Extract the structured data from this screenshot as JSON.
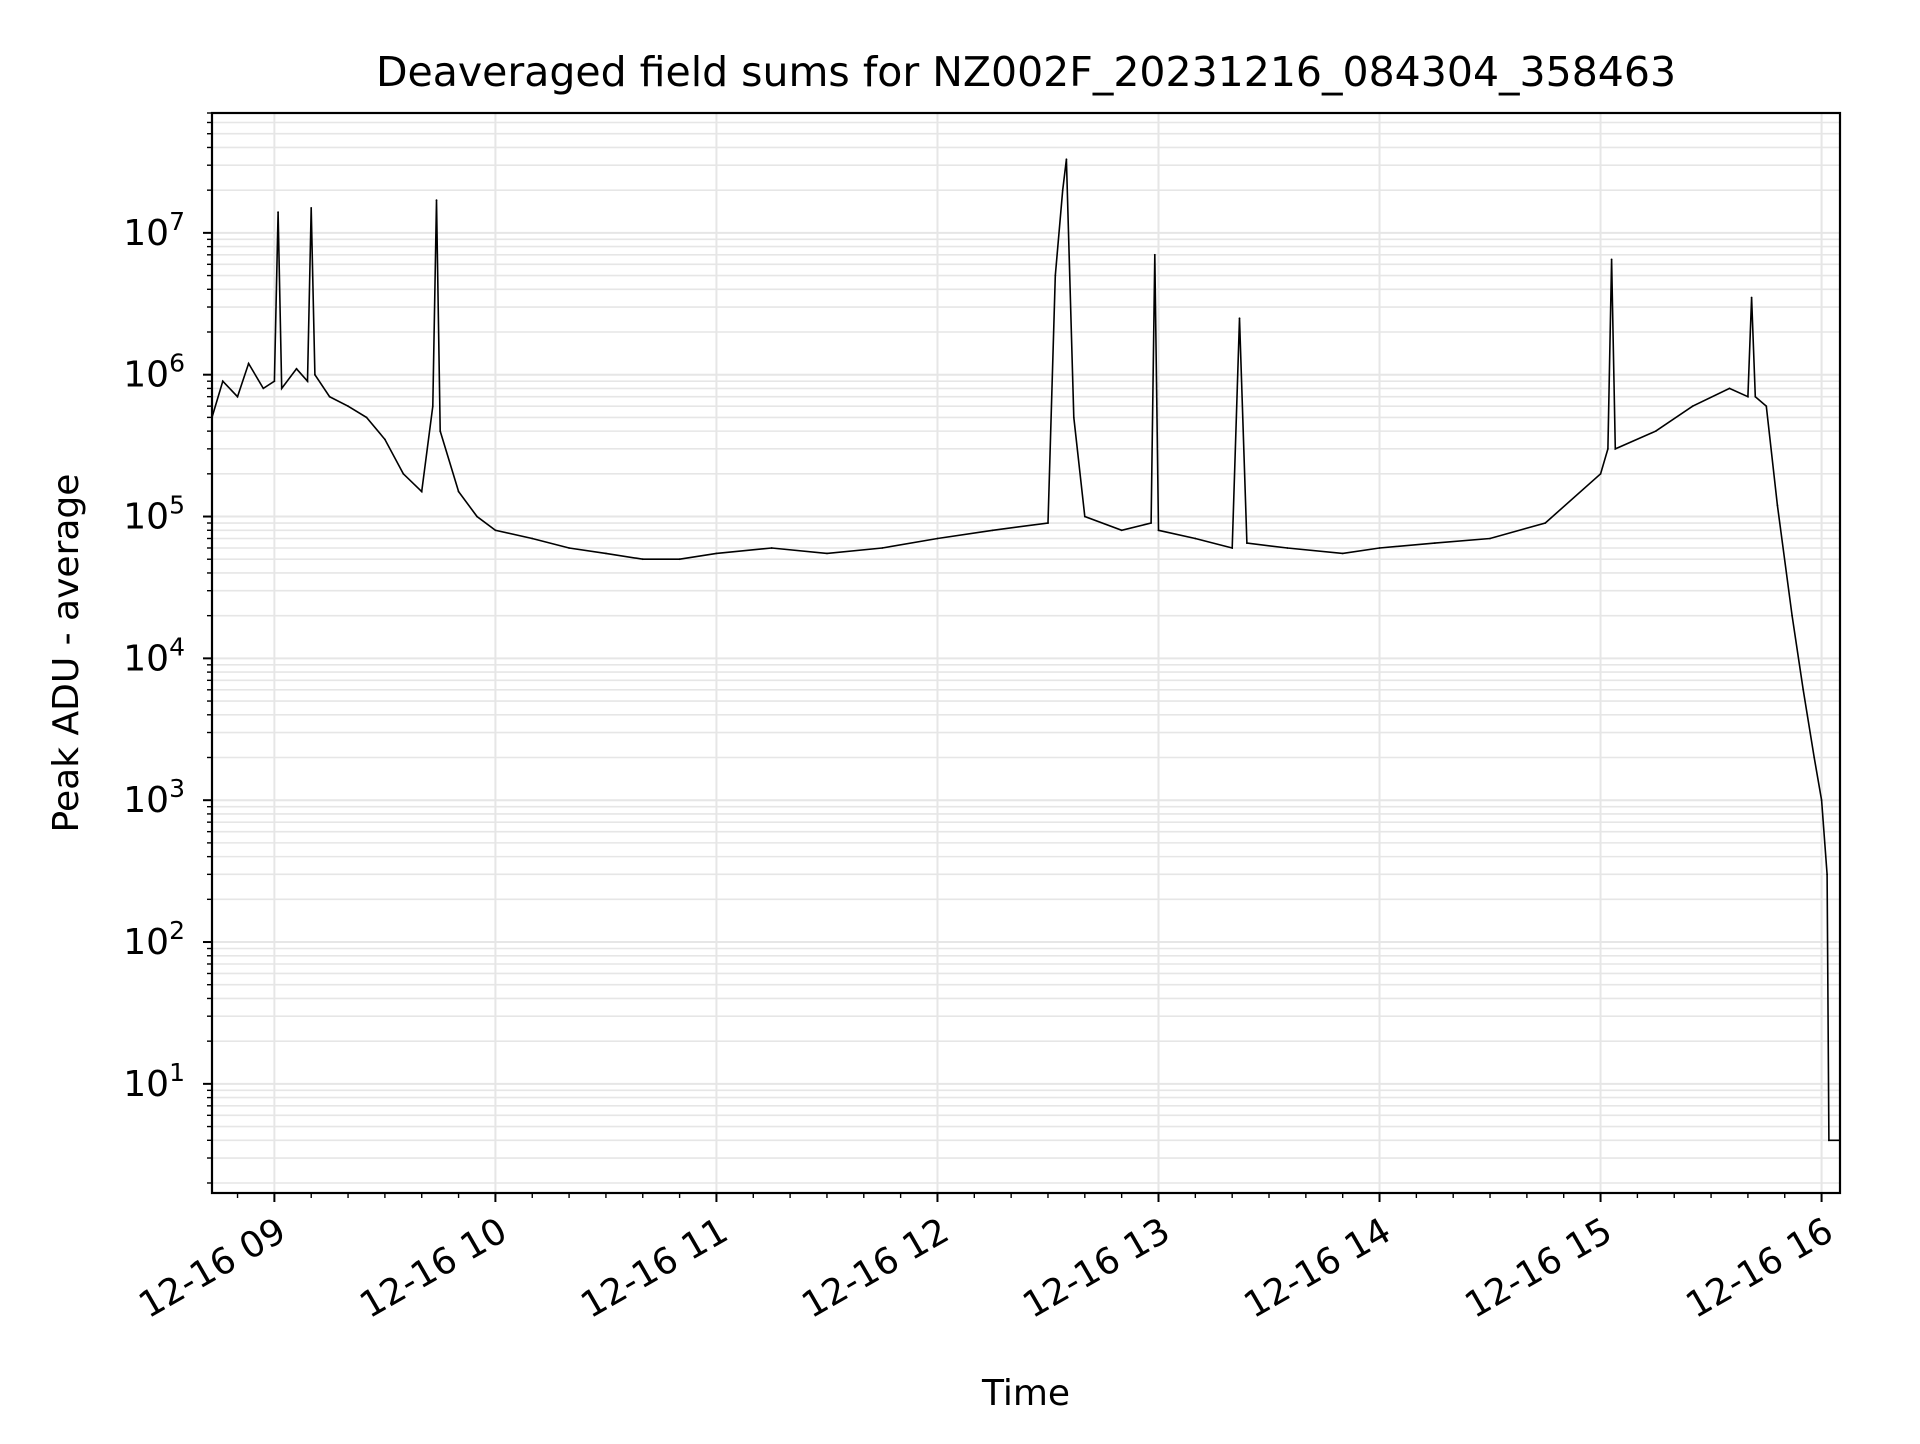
{
  "chart_data": {
    "type": "line",
    "title": "Deaveraged field sums for NZ002F_20231216_084304_358463",
    "xlabel": "Time",
    "ylabel": "Peak ADU - average",
    "y_scale": "log",
    "ylim": [
      1.7,
      70000000
    ],
    "xlim": [
      "2023-12-16T08:43:04",
      "2023-12-16T16:05:00"
    ],
    "x_ticks": [
      {
        "value": "2023-12-16T09:00:00",
        "label": "12-16 09"
      },
      {
        "value": "2023-12-16T10:00:00",
        "label": "12-16 10"
      },
      {
        "value": "2023-12-16T11:00:00",
        "label": "12-16 11"
      },
      {
        "value": "2023-12-16T12:00:00",
        "label": "12-16 12"
      },
      {
        "value": "2023-12-16T13:00:00",
        "label": "12-16 13"
      },
      {
        "value": "2023-12-16T14:00:00",
        "label": "12-16 14"
      },
      {
        "value": "2023-12-16T15:00:00",
        "label": "12-16 15"
      },
      {
        "value": "2023-12-16T16:00:00",
        "label": "12-16 16"
      }
    ],
    "y_ticks": [
      {
        "value": 10,
        "base": "10",
        "exp": "1"
      },
      {
        "value": 100,
        "base": "10",
        "exp": "2"
      },
      {
        "value": 1000,
        "base": "10",
        "exp": "3"
      },
      {
        "value": 10000,
        "base": "10",
        "exp": "4"
      },
      {
        "value": 100000,
        "base": "10",
        "exp": "5"
      },
      {
        "value": 1000000,
        "base": "10",
        "exp": "6"
      },
      {
        "value": 10000000,
        "base": "10",
        "exp": "7"
      }
    ],
    "grid": true,
    "line_color": "#000000",
    "grid_color": "#e6e6e6",
    "series": [
      {
        "x": [
          "2023-12-16T08:43:04",
          "2023-12-16T08:46:00",
          "2023-12-16T08:50:00",
          "2023-12-16T08:53:00",
          "2023-12-16T08:57:00",
          "2023-12-16T09:00:00",
          "2023-12-16T09:01:00",
          "2023-12-16T09:02:00",
          "2023-12-16T09:06:00",
          "2023-12-16T09:09:00",
          "2023-12-16T09:10:00",
          "2023-12-16T09:11:00",
          "2023-12-16T09:15:00",
          "2023-12-16T09:20:00",
          "2023-12-16T09:25:00",
          "2023-12-16T09:30:00",
          "2023-12-16T09:35:00",
          "2023-12-16T09:40:00",
          "2023-12-16T09:43:00",
          "2023-12-16T09:44:00",
          "2023-12-16T09:45:00",
          "2023-12-16T09:50:00",
          "2023-12-16T09:55:00",
          "2023-12-16T10:00:00",
          "2023-12-16T10:10:00",
          "2023-12-16T10:20:00",
          "2023-12-16T10:30:00",
          "2023-12-16T10:40:00",
          "2023-12-16T10:50:00",
          "2023-12-16T11:00:00",
          "2023-12-16T11:15:00",
          "2023-12-16T11:30:00",
          "2023-12-16T11:45:00",
          "2023-12-16T12:00:00",
          "2023-12-16T12:15:00",
          "2023-12-16T12:30:00",
          "2023-12-16T12:32:00",
          "2023-12-16T12:34:00",
          "2023-12-16T12:35:00",
          "2023-12-16T12:37:00",
          "2023-12-16T12:40:00",
          "2023-12-16T12:50:00",
          "2023-12-16T12:58:00",
          "2023-12-16T12:59:00",
          "2023-12-16T13:00:00",
          "2023-12-16T13:10:00",
          "2023-12-16T13:20:00",
          "2023-12-16T13:22:00",
          "2023-12-16T13:24:00",
          "2023-12-16T13:35:00",
          "2023-12-16T13:50:00",
          "2023-12-16T14:00:00",
          "2023-12-16T14:15:00",
          "2023-12-16T14:30:00",
          "2023-12-16T14:45:00",
          "2023-12-16T15:00:00",
          "2023-12-16T15:02:00",
          "2023-12-16T15:03:00",
          "2023-12-16T15:04:00",
          "2023-12-16T15:15:00",
          "2023-12-16T15:25:00",
          "2023-12-16T15:35:00",
          "2023-12-16T15:40:00",
          "2023-12-16T15:41:00",
          "2023-12-16T15:42:00",
          "2023-12-16T15:45:00",
          "2023-12-16T15:48:00",
          "2023-12-16T15:52:00",
          "2023-12-16T15:55:00",
          "2023-12-16T15:58:00",
          "2023-12-16T16:00:00",
          "2023-12-16T16:01:30",
          "2023-12-16T16:02:00",
          "2023-12-16T16:05:00"
        ],
        "y": [
          500000,
          900000,
          700000,
          1200000,
          800000,
          900000,
          14000000,
          800000,
          1100000,
          900000,
          15000000,
          1000000,
          700000,
          600000,
          500000,
          350000,
          200000,
          150000,
          600000,
          17000000,
          400000,
          150000,
          100000,
          80000,
          70000,
          60000,
          55000,
          50000,
          50000,
          55000,
          60000,
          55000,
          60000,
          70000,
          80000,
          90000,
          5000000,
          20000000,
          33000000,
          500000,
          100000,
          80000,
          90000,
          7000000,
          80000,
          70000,
          60000,
          2500000,
          65000,
          60000,
          55000,
          60000,
          65000,
          70000,
          90000,
          200000,
          300000,
          6500000,
          300000,
          400000,
          600000,
          800000,
          700000,
          3500000,
          700000,
          600000,
          120000,
          20000,
          6000,
          2000,
          1000,
          300,
          4,
          4
        ]
      }
    ]
  }
}
